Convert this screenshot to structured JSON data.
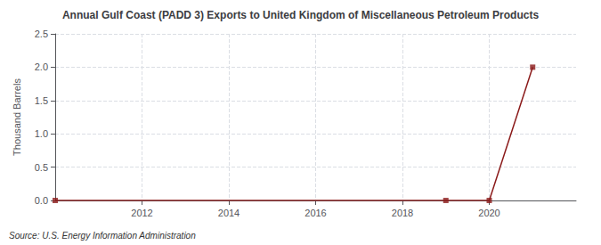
{
  "chart_data": {
    "type": "line",
    "title": "Annual Gulf Coast (PADD 3) Exports to United Kingdom of Miscellaneous Petroleum Products",
    "ylabel": "Thousand Barrels",
    "annotations": [
      "Source: U.S. Energy Information Administration"
    ],
    "x": [
      2010,
      2011,
      2012,
      2013,
      2014,
      2015,
      2016,
      2017,
      2018,
      2019,
      2020,
      2021
    ],
    "series": [
      {
        "type": "line",
        "color": "#8b1a1a",
        "line_style": "solid",
        "values": [
          0,
          0,
          0,
          0,
          0,
          0,
          0,
          0,
          0,
          0,
          0,
          2.0
        ]
      },
      {
        "type": "scatter",
        "color": "#8b1a1a",
        "marker": "square",
        "x": [
          2010,
          2019,
          2020,
          2021
        ],
        "values": [
          0,
          0,
          0,
          2.0
        ]
      }
    ],
    "xlim": [
      2010.0,
      2022.0
    ],
    "xticks": [
      2012,
      2014,
      2016,
      2018,
      2020
    ],
    "ylim": [
      0.0,
      2.5
    ],
    "yticks": [
      {
        "value": 0.0,
        "label": "0.0"
      },
      0.5,
      {
        "value": 1.0,
        "label": "1.0"
      },
      1.5,
      {
        "value": 2.0,
        "label": "2.0"
      },
      2.5
    ],
    "grid": true
  }
}
